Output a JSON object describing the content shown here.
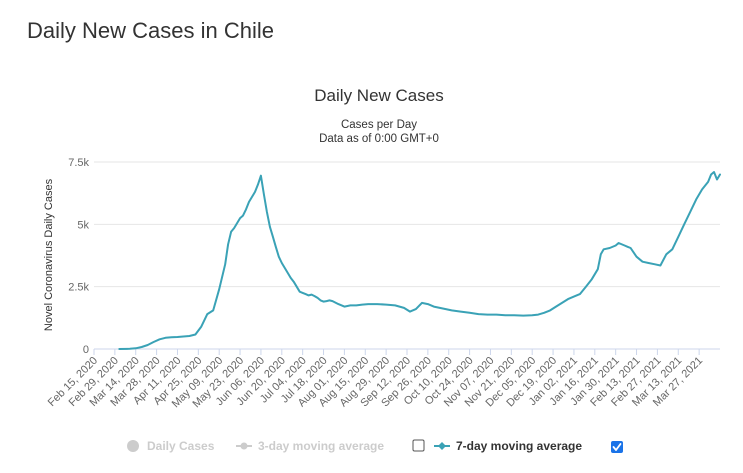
{
  "page": {
    "title": "Daily New Cases in Chile"
  },
  "colors": {
    "line": "#3aa2b6",
    "grid": "#e6e6e6",
    "axis": "#ccd6eb",
    "muted": "#cccccc",
    "checkbox": "#1a73e8"
  },
  "chart_data": {
    "type": "line",
    "title": "Daily New Cases",
    "subtitle_lines": [
      "Cases per Day",
      "Data as of 0:00 GMT+0"
    ],
    "ylabel": "Novel Coronavirus Daily Cases",
    "ylim": [
      0,
      7500
    ],
    "y_ticks": [
      {
        "value": 0,
        "label": "0"
      },
      {
        "value": 2500,
        "label": "2.5k"
      },
      {
        "value": 5000,
        "label": "5k"
      },
      {
        "value": 7500,
        "label": "7.5k"
      }
    ],
    "x_range_days": [
      0,
      420
    ],
    "x_ticks": [
      {
        "day": 0,
        "label": "Feb 15, 2020"
      },
      {
        "day": 14,
        "label": "Feb 29, 2020"
      },
      {
        "day": 28,
        "label": "Mar 14, 2020"
      },
      {
        "day": 42,
        "label": "Mar 28, 2020"
      },
      {
        "day": 56,
        "label": "Apr 11, 2020"
      },
      {
        "day": 70,
        "label": "Apr 25, 2020"
      },
      {
        "day": 84,
        "label": "May 09, 2020"
      },
      {
        "day": 98,
        "label": "May 23, 2020"
      },
      {
        "day": 112,
        "label": "Jun 06, 2020"
      },
      {
        "day": 126,
        "label": "Jun 20, 2020"
      },
      {
        "day": 140,
        "label": "Jul 04, 2020"
      },
      {
        "day": 154,
        "label": "Jul 18, 2020"
      },
      {
        "day": 168,
        "label": "Aug 01, 2020"
      },
      {
        "day": 182,
        "label": "Aug 15, 2020"
      },
      {
        "day": 196,
        "label": "Aug 29, 2020"
      },
      {
        "day": 210,
        "label": "Sep 12, 2020"
      },
      {
        "day": 224,
        "label": "Sep 26, 2020"
      },
      {
        "day": 238,
        "label": "Oct 10, 2020"
      },
      {
        "day": 252,
        "label": "Oct 24, 2020"
      },
      {
        "day": 266,
        "label": "Nov 07, 2020"
      },
      {
        "day": 280,
        "label": "Nov 21, 2020"
      },
      {
        "day": 294,
        "label": "Dec 05, 2020"
      },
      {
        "day": 308,
        "label": "Dec 19, 2020"
      },
      {
        "day": 322,
        "label": "Jan 02, 2021"
      },
      {
        "day": 336,
        "label": "Jan 16, 2021"
      },
      {
        "day": 350,
        "label": "Jan 30, 2021"
      },
      {
        "day": 364,
        "label": "Feb 13, 2021"
      },
      {
        "day": 378,
        "label": "Feb 27, 2021"
      },
      {
        "day": 392,
        "label": "Mar 13, 2021"
      },
      {
        "day": 406,
        "label": "Mar 27, 2021"
      }
    ],
    "series": [
      {
        "name": "7-day moving average",
        "x": [
          17,
          24,
          28,
          32,
          36,
          40,
          44,
          48,
          52,
          56,
          60,
          64,
          68,
          72,
          76,
          80,
          84,
          88,
          90,
          92,
          94,
          96,
          98,
          100,
          102,
          104,
          106,
          108,
          110,
          112,
          114,
          116,
          118,
          120,
          122,
          124,
          126,
          128,
          130,
          132,
          134,
          136,
          138,
          140,
          142,
          144,
          146,
          148,
          150,
          152,
          154,
          156,
          158,
          160,
          164,
          168,
          172,
          176,
          180,
          184,
          190,
          196,
          202,
          208,
          212,
          216,
          220,
          224,
          228,
          232,
          236,
          240,
          246,
          252,
          258,
          264,
          270,
          276,
          282,
          288,
          294,
          298,
          302,
          306,
          310,
          314,
          318,
          322,
          326,
          330,
          334,
          338,
          340,
          342,
          346,
          350,
          352,
          356,
          358,
          360,
          364,
          368,
          372,
          376,
          380,
          384,
          388,
          392,
          396,
          400,
          404,
          408,
          412,
          414,
          416,
          418,
          420
        ],
        "y": [
          0,
          10,
          30,
          80,
          160,
          280,
          390,
          450,
          470,
          480,
          500,
          520,
          580,
          900,
          1400,
          1550,
          2400,
          3400,
          4200,
          4700,
          4850,
          5050,
          5250,
          5350,
          5600,
          5900,
          6100,
          6300,
          6600,
          6950,
          6200,
          5500,
          4900,
          4500,
          4100,
          3700,
          3450,
          3250,
          3050,
          2850,
          2700,
          2500,
          2300,
          2250,
          2200,
          2150,
          2180,
          2120,
          2050,
          1950,
          1900,
          1920,
          1950,
          1920,
          1800,
          1700,
          1750,
          1750,
          1780,
          1800,
          1800,
          1780,
          1750,
          1650,
          1500,
          1600,
          1850,
          1800,
          1700,
          1650,
          1600,
          1550,
          1500,
          1450,
          1400,
          1380,
          1380,
          1350,
          1350,
          1340,
          1350,
          1380,
          1450,
          1550,
          1700,
          1850,
          2000,
          2100,
          2200,
          2500,
          2800,
          3200,
          3800,
          4000,
          4050,
          4150,
          4250,
          4150,
          4100,
          4050,
          3700,
          3500,
          3450,
          3400,
          3350,
          3800,
          4000,
          4500,
          5000,
          5500,
          6000,
          6400,
          6700,
          7000,
          7100,
          6800,
          7000
        ]
      }
    ],
    "legend": [
      {
        "label": "Daily Cases",
        "active": false,
        "has_checkbox": false
      },
      {
        "label": "3-day moving average",
        "active": false,
        "has_checkbox": true,
        "checked": false
      },
      {
        "label": "7-day moving average",
        "active": true,
        "has_checkbox": true,
        "checked": true
      }
    ]
  }
}
